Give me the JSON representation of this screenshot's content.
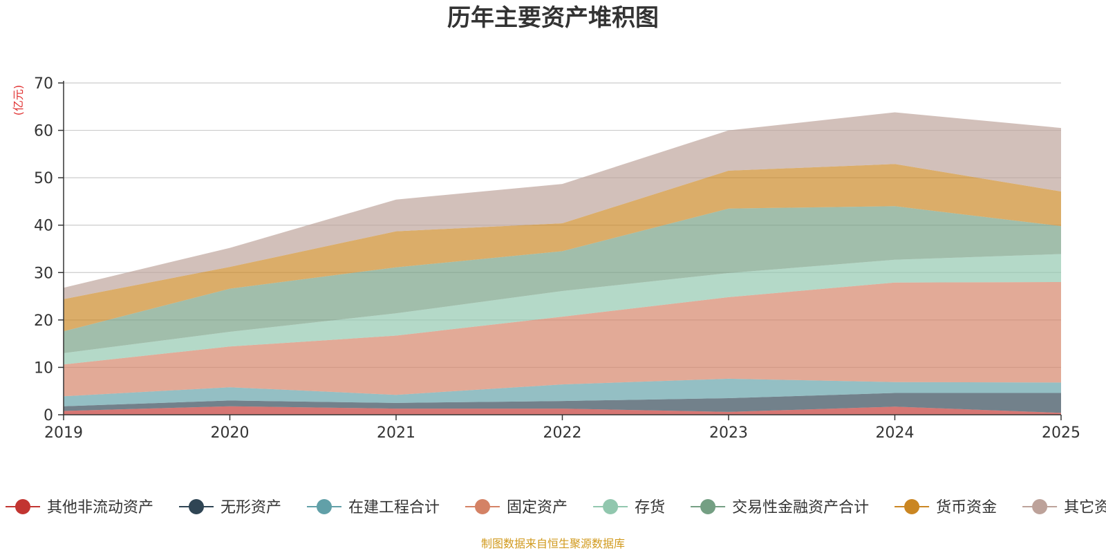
{
  "chart_data": {
    "type": "area",
    "stacked": true,
    "title": "历年主要资产堆积图",
    "ylabel": "(亿元)",
    "xlabel": "",
    "categories": [
      "2019",
      "2020",
      "2021",
      "2022",
      "2023",
      "2024",
      "2025"
    ],
    "yticks": [
      "0",
      "10",
      "20",
      "30",
      "40",
      "50",
      "60",
      "70"
    ],
    "ylim": [
      0,
      70
    ],
    "grid": true,
    "legend_position": "bottom",
    "series": [
      {
        "name": "其他非流动资产",
        "color": "#c23531",
        "values": [
          0.8,
          1.8,
          1.3,
          1.3,
          0.6,
          1.7,
          0.4
        ]
      },
      {
        "name": "无形资产",
        "color": "#2f4554",
        "values": [
          1.0,
          1.2,
          1.2,
          1.6,
          2.9,
          2.9,
          4.2
        ]
      },
      {
        "name": "在建工程合计",
        "color": "#61a0a8",
        "values": [
          2.1,
          2.8,
          1.7,
          3.5,
          4.1,
          2.3,
          2.2
        ]
      },
      {
        "name": "固定资产",
        "color": "#d48265",
        "values": [
          6.7,
          8.6,
          12.5,
          14.3,
          17.2,
          21.0,
          21.2
        ]
      },
      {
        "name": "存货",
        "color": "#91c7ae",
        "values": [
          2.4,
          3.1,
          4.7,
          5.4,
          5.1,
          4.8,
          5.9
        ]
      },
      {
        "name": "交易性金融资产合计",
        "color": "#749f83",
        "values": [
          4.6,
          9.1,
          9.7,
          8.4,
          13.6,
          11.3,
          5.9
        ]
      },
      {
        "name": "货币资金",
        "color": "#ca8622",
        "values": [
          6.8,
          4.6,
          7.6,
          5.9,
          8.0,
          8.9,
          7.3
        ]
      },
      {
        "name": "其它资产",
        "color": "#bda29a",
        "values": [
          2.4,
          4.0,
          6.7,
          8.3,
          8.5,
          10.9,
          13.4
        ]
      }
    ]
  },
  "source_note": "制图数据来自恒生聚源数据库"
}
